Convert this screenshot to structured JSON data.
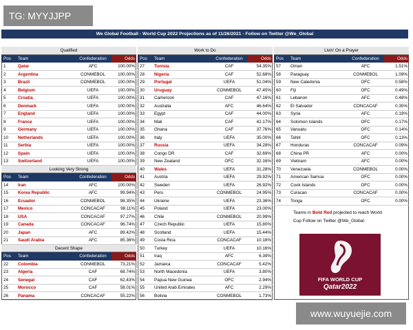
{
  "header": {
    "title": "We Global Football - World Cup 2022 Projections as of 11/26/2021 - Follow on Twitter @We_Global"
  },
  "columns": [
    "Pos",
    "Team",
    "Confederation",
    "Odds"
  ],
  "panels": [
    [
      {
        "title": "Qualified",
        "rows": [
          {
            "pos": 1,
            "team": "Qatar",
            "confederation": "AFC",
            "odds": "100.00%",
            "highlight": true
          },
          {
            "pos": 2,
            "team": "Argentina",
            "confederation": "CONMEBOL",
            "odds": "100.00%",
            "highlight": true
          },
          {
            "pos": 3,
            "team": "Brazil",
            "confederation": "CONMEBOL",
            "odds": "100.00%",
            "highlight": true
          },
          {
            "pos": 4,
            "team": "Belgium",
            "confederation": "UEFA",
            "odds": "100.00%",
            "highlight": true
          },
          {
            "pos": 5,
            "team": "Croatia",
            "confederation": "UEFA",
            "odds": "100.00%",
            "highlight": true
          },
          {
            "pos": 6,
            "team": "Denmark",
            "confederation": "UEFA",
            "odds": "100.00%",
            "highlight": true
          },
          {
            "pos": 7,
            "team": "England",
            "confederation": "UEFA",
            "odds": "100.00%",
            "highlight": true
          },
          {
            "pos": 8,
            "team": "France",
            "confederation": "UEFA",
            "odds": "100.00%",
            "highlight": true
          },
          {
            "pos": 9,
            "team": "Germany",
            "confederation": "UEFA",
            "odds": "100.00%",
            "highlight": true
          },
          {
            "pos": 10,
            "team": "Netherlands",
            "confederation": "UEFA",
            "odds": "100.00%",
            "highlight": true
          },
          {
            "pos": 11,
            "team": "Serbia",
            "confederation": "UEFA",
            "odds": "100.00%",
            "highlight": true
          },
          {
            "pos": 12,
            "team": "Spain",
            "confederation": "UEFA",
            "odds": "100.00%",
            "highlight": true
          },
          {
            "pos": 13,
            "team": "Switzerland",
            "confederation": "UEFA",
            "odds": "100.00%",
            "highlight": true
          }
        ]
      },
      {
        "title": "Looking Very Strong",
        "rows": [
          {
            "pos": 14,
            "team": "Iran",
            "confederation": "AFC",
            "odds": "100.00%",
            "highlight": true
          },
          {
            "pos": 15,
            "team": "Korea Republic",
            "confederation": "AFC",
            "odds": "99.94%",
            "highlight": true
          },
          {
            "pos": 16,
            "team": "Ecuador",
            "confederation": "CONMEBOL",
            "odds": "98.35%",
            "highlight": true
          },
          {
            "pos": 17,
            "team": "Mexico",
            "confederation": "CONCACAF",
            "odds": "98.11%",
            "highlight": true
          },
          {
            "pos": 18,
            "team": "USA",
            "confederation": "CONCACAF",
            "odds": "97.27%",
            "highlight": true
          },
          {
            "pos": 19,
            "team": "Canada",
            "confederation": "CONCACAF",
            "odds": "96.74%",
            "highlight": true
          },
          {
            "pos": 20,
            "team": "Japan",
            "confederation": "AFC",
            "odds": "89.42%",
            "highlight": true
          },
          {
            "pos": 21,
            "team": "Saudi Arabia",
            "confederation": "AFC",
            "odds": "85.36%",
            "highlight": true
          }
        ]
      },
      {
        "title": "Decent Shape",
        "rows": [
          {
            "pos": 22,
            "team": "Colombia",
            "confederation": "CONMEBOL",
            "odds": "73.21%",
            "highlight": true
          },
          {
            "pos": 23,
            "team": "Algeria",
            "confederation": "CAF",
            "odds": "68.74%",
            "highlight": true
          },
          {
            "pos": 24,
            "team": "Senegal",
            "confederation": "CAF",
            "odds": "62.43%",
            "highlight": true
          },
          {
            "pos": 25,
            "team": "Morocco",
            "confederation": "CAF",
            "odds": "58.01%",
            "highlight": true
          },
          {
            "pos": 26,
            "team": "Panama",
            "confederation": "CONCACAF",
            "odds": "55.22%",
            "highlight": true
          }
        ]
      }
    ],
    [
      {
        "title": "Work to Do",
        "rows": [
          {
            "pos": 27,
            "team": "Tunisia",
            "confederation": "CAF",
            "odds": "54.35%",
            "highlight": true
          },
          {
            "pos": 28,
            "team": "Nigeria",
            "confederation": "CAF",
            "odds": "52.68%",
            "highlight": true
          },
          {
            "pos": 29,
            "team": "Portugal",
            "confederation": "UEFA",
            "odds": "51.04%",
            "highlight": true
          },
          {
            "pos": 30,
            "team": "Uruguay",
            "confederation": "CONMEBOL",
            "odds": "47.45%",
            "highlight": true
          },
          {
            "pos": 31,
            "team": "Cameroon",
            "confederation": "CAF",
            "odds": "47.16%",
            "highlight": false
          },
          {
            "pos": 32,
            "team": "Australia",
            "confederation": "AFC",
            "odds": "46.64%",
            "highlight": false
          },
          {
            "pos": 33,
            "team": "Egypt",
            "confederation": "CAF",
            "odds": "44.00%",
            "highlight": false
          },
          {
            "pos": 34,
            "team": "Mali",
            "confederation": "CAF",
            "odds": "42.17%",
            "highlight": false
          },
          {
            "pos": 35,
            "team": "Ghana",
            "confederation": "CAF",
            "odds": "37.76%",
            "highlight": false
          },
          {
            "pos": 36,
            "team": "Italy",
            "confederation": "UEFA",
            "odds": "35.00%",
            "highlight": false
          },
          {
            "pos": 37,
            "team": "Russia",
            "confederation": "UEFA",
            "odds": "34.28%",
            "highlight": true
          },
          {
            "pos": 38,
            "team": "Congo DR",
            "confederation": "CAF",
            "odds": "32.69%",
            "highlight": false
          },
          {
            "pos": 39,
            "team": "New Zealand",
            "confederation": "OFC",
            "odds": "32.16%",
            "highlight": false
          },
          {
            "pos": 40,
            "team": "Wales",
            "confederation": "UEFA",
            "odds": "31.28%",
            "highlight": true
          },
          {
            "pos": 41,
            "team": "Austria",
            "confederation": "UEFA",
            "odds": "29.92%",
            "highlight": false
          },
          {
            "pos": 42,
            "team": "Sweden",
            "confederation": "UEFA",
            "odds": "26.92%",
            "highlight": false
          },
          {
            "pos": 43,
            "team": "Peru",
            "confederation": "CONMEBOL",
            "odds": "24.95%",
            "highlight": false
          },
          {
            "pos": 44,
            "team": "Ukraine",
            "confederation": "UEFA",
            "odds": "23.36%",
            "highlight": false
          },
          {
            "pos": 45,
            "team": "Poland",
            "confederation": "UEFA",
            "odds": "23.00%",
            "highlight": false
          },
          {
            "pos": 46,
            "team": "Chile",
            "confederation": "CONMEBOL",
            "odds": "20.99%",
            "highlight": false
          },
          {
            "pos": 47,
            "team": "Czech Republic",
            "confederation": "UEFA",
            "odds": "15.80%",
            "highlight": false
          },
          {
            "pos": 48,
            "team": "Scotland",
            "confederation": "UEFA",
            "odds": "15.44%",
            "highlight": false
          },
          {
            "pos": 49,
            "team": "Costa Rica",
            "confederation": "CONCACAF",
            "odds": "10.18%",
            "highlight": false
          },
          {
            "pos": 50,
            "team": "Turkey",
            "confederation": "UEFA",
            "odds": "10.16%",
            "highlight": false
          },
          {
            "pos": 51,
            "team": "Iraq",
            "confederation": "AFC",
            "odds": "6.39%",
            "highlight": false
          },
          {
            "pos": 52,
            "team": "Jamaica",
            "confederation": "CONCACAF",
            "odds": "5.42%",
            "highlight": false
          },
          {
            "pos": 53,
            "team": "North Macedonia",
            "confederation": "UEFA",
            "odds": "3.80%",
            "highlight": false
          },
          {
            "pos": 54,
            "team": "Papua New Guinea",
            "confederation": "OFC",
            "odds": "2.94%",
            "highlight": false
          },
          {
            "pos": 55,
            "team": "United Arab Emirates",
            "confederation": "AFC",
            "odds": "2.29%",
            "highlight": false
          },
          {
            "pos": 56,
            "team": "Bolivia",
            "confederation": "CONMEBOL",
            "odds": "1.73%",
            "highlight": false
          }
        ]
      }
    ],
    [
      {
        "title": "Livin' On a Prayer",
        "rows": [
          {
            "pos": 57,
            "team": "Oman",
            "confederation": "AFC",
            "odds": "1.51%",
            "highlight": false
          },
          {
            "pos": 58,
            "team": "Paraguay",
            "confederation": "CONMEBOL",
            "odds": "1.09%",
            "highlight": false
          },
          {
            "pos": 59,
            "team": "New Caledonia",
            "confederation": "OFC",
            "odds": "0.58%",
            "highlight": false
          },
          {
            "pos": 60,
            "team": "Fiji",
            "confederation": "OFC",
            "odds": "0.49%",
            "highlight": false
          },
          {
            "pos": 61,
            "team": "Lebanon",
            "confederation": "AFC",
            "odds": "0.48%",
            "highlight": false
          },
          {
            "pos": 62,
            "team": "El Salvador",
            "confederation": "CONCACAF",
            "odds": "0.35%",
            "highlight": false
          },
          {
            "pos": 63,
            "team": "Syria",
            "confederation": "AFC",
            "odds": "0.19%",
            "highlight": false
          },
          {
            "pos": 64,
            "team": "Solomon Islands",
            "confederation": "OFC",
            "odds": "0.17%",
            "highlight": false
          },
          {
            "pos": 65,
            "team": "Vanuatu",
            "confederation": "OFC",
            "odds": "0.14%",
            "highlight": false
          },
          {
            "pos": 66,
            "team": "Tahiti",
            "confederation": "OFC",
            "odds": "0.13%",
            "highlight": false
          },
          {
            "pos": 67,
            "team": "Honduras",
            "confederation": "CONCACAF",
            "odds": "0.09%",
            "highlight": false
          },
          {
            "pos": 68,
            "team": "China PR",
            "confederation": "AFC",
            "odds": "0.00%",
            "highlight": false
          },
          {
            "pos": 69,
            "team": "Vietnam",
            "confederation": "AFC",
            "odds": "0.00%",
            "highlight": false
          },
          {
            "pos": 70,
            "team": "Venezuela",
            "confederation": "CONMEBOL",
            "odds": "0.00%",
            "highlight": false
          },
          {
            "pos": 71,
            "team": "American Samoa",
            "confederation": "OFC",
            "odds": "0.00%",
            "highlight": false
          },
          {
            "pos": 72,
            "team": "Cook Islands",
            "confederation": "OFC",
            "odds": "0.00%",
            "highlight": false
          },
          {
            "pos": 73,
            "team": "Curacao",
            "confederation": "CONCACAF",
            "odds": "0.00%",
            "highlight": false
          },
          {
            "pos": 74,
            "team": "Tonga",
            "confederation": "OFC",
            "odds": "0.00%",
            "highlight": false
          }
        ]
      }
    ]
  ],
  "note": {
    "prefix": "Teams in",
    "highlight": "Bold Red",
    "suffix": "projected to reach World Cup Follow on Twitter @We_Global"
  },
  "logo": {
    "line1": "FIFA WORLD CUP",
    "line2": "Qatar2022"
  },
  "watermarks": {
    "top": "TG: MYYJJPP",
    "bottom": "www.wuyuejie.com"
  }
}
